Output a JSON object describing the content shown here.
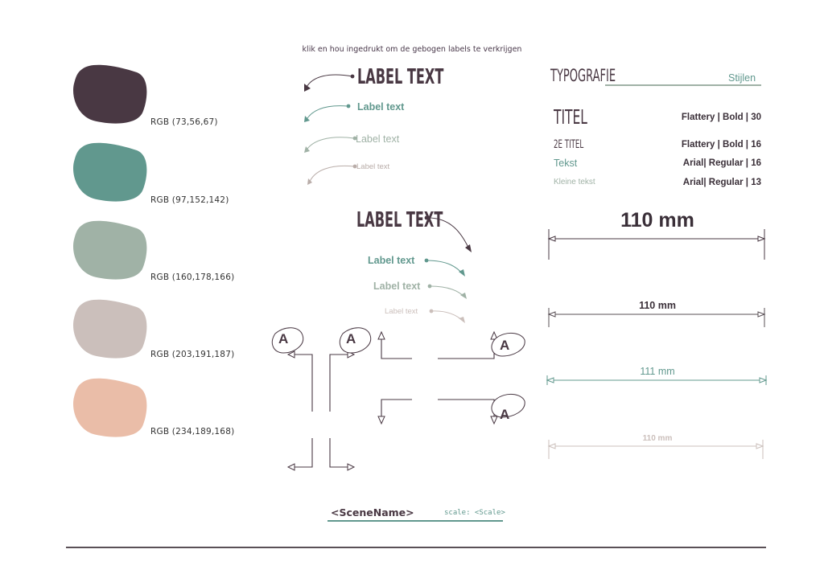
{
  "hint": "klik en hou ingedrukt om de gebogen labels te verkrijgen",
  "swatches": [
    {
      "label": "RGB (73,56,67)",
      "color": "#493843"
    },
    {
      "label": "RGB (97,152,142)",
      "color": "#61988e"
    },
    {
      "label": "RGB (160,178,166)",
      "color": "#a0b2a6"
    },
    {
      "label": "RGB (203,191,187)",
      "color": "#cbbfbb"
    },
    {
      "label": "RGB (234,189,168)",
      "color": "#eabda8"
    }
  ],
  "labels_left": [
    "LABEL TEXT",
    "Label text",
    "Label text",
    "Label text"
  ],
  "labels_right": [
    "LABEL TEXT",
    "Label text",
    "Label text",
    "Label text"
  ],
  "marker_letter": "A",
  "typography": {
    "heading": "TYPOGRAFIE",
    "styles": "Stijlen",
    "rows": [
      {
        "name": "TITEL",
        "spec": "Flattery | Bold | 30"
      },
      {
        "name": "2E TITEL",
        "spec": "Flattery | Bold | 16"
      },
      {
        "name": "Tekst",
        "spec": "Arial| Regular | 16"
      },
      {
        "name": "Kleine tekst",
        "spec": "Arial| Regular | 13"
      }
    ]
  },
  "dimensions": [
    "110 mm",
    "110 mm",
    "111 mm",
    "110 mm"
  ],
  "footer": {
    "scene": "<SceneName>",
    "scale": "scale: <Scale>"
  },
  "colors": {
    "dark": "#493843",
    "teal": "#61988e",
    "sage": "#a0b2a6",
    "taupe": "#cbbfbb",
    "peach": "#eabda8"
  }
}
